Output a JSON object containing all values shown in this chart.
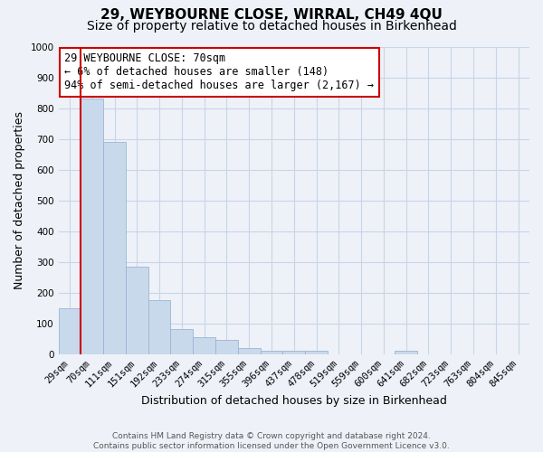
{
  "title1": "29, WEYBOURNE CLOSE, WIRRAL, CH49 4QU",
  "title2": "Size of property relative to detached houses in Birkenhead",
  "xlabel": "Distribution of detached houses by size in Birkenhead",
  "ylabel": "Number of detached properties",
  "annotation_line1": "29 WEYBOURNE CLOSE: 70sqm",
  "annotation_line2": "← 6% of detached houses are smaller (148)",
  "annotation_line3": "94% of semi-detached houses are larger (2,167) →",
  "footer1": "Contains HM Land Registry data © Crown copyright and database right 2024.",
  "footer2": "Contains public sector information licensed under the Open Government Licence v3.0.",
  "bar_labels": [
    "29sqm",
    "70sqm",
    "111sqm",
    "151sqm",
    "192sqm",
    "233sqm",
    "274sqm",
    "315sqm",
    "355sqm",
    "396sqm",
    "437sqm",
    "478sqm",
    "519sqm",
    "559sqm",
    "600sqm",
    "641sqm",
    "682sqm",
    "723sqm",
    "763sqm",
    "804sqm",
    "845sqm"
  ],
  "bar_values": [
    150,
    830,
    690,
    285,
    175,
    80,
    55,
    45,
    20,
    10,
    10,
    10,
    0,
    0,
    0,
    10,
    0,
    0,
    0,
    0,
    0
  ],
  "bar_color": "#c9d9ec",
  "bar_edge_color": "#9ab4d4",
  "red_line_bar_index": 1,
  "annotation_box_color": "#ffffff",
  "annotation_box_edge_color": "#cc0000",
  "ylim": [
    0,
    1000
  ],
  "yticks": [
    0,
    100,
    200,
    300,
    400,
    500,
    600,
    700,
    800,
    900,
    1000
  ],
  "grid_color": "#c8d4e8",
  "background_color": "#eef2f8",
  "title_fontsize": 11,
  "subtitle_fontsize": 10,
  "axis_label_fontsize": 9,
  "tick_fontsize": 7.5,
  "annotation_fontsize": 8.5,
  "footer_fontsize": 6.5
}
